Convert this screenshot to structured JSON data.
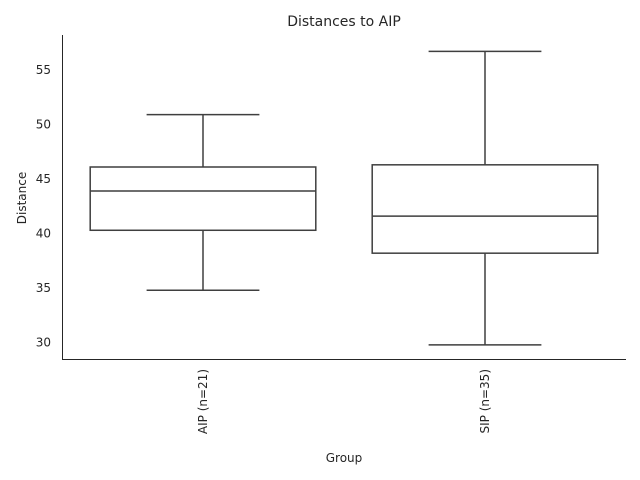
{
  "chart_data": {
    "type": "box",
    "title": "Distances to AIP",
    "xlabel": "Group",
    "ylabel": "Distance",
    "ylim": [
      28.5,
      58.2
    ],
    "yticks": [
      30,
      35,
      40,
      45,
      50,
      55
    ],
    "grid": false,
    "legend": "none",
    "colors": {
      "line": "#3f3f3f",
      "fill": "#ffffff",
      "text": "#262626"
    },
    "categories": [
      "AIP (n=21)",
      "SIP (n=35)"
    ],
    "boxes": [
      {
        "category": "AIP (n=21)",
        "whisker_low": 34.8,
        "q1": 40.3,
        "median": 43.9,
        "q3": 46.1,
        "whisker_high": 50.9
      },
      {
        "category": "SIP (n=35)",
        "whisker_low": 29.8,
        "q1": 38.2,
        "median": 41.6,
        "q3": 46.3,
        "whisker_high": 56.7
      }
    ]
  }
}
